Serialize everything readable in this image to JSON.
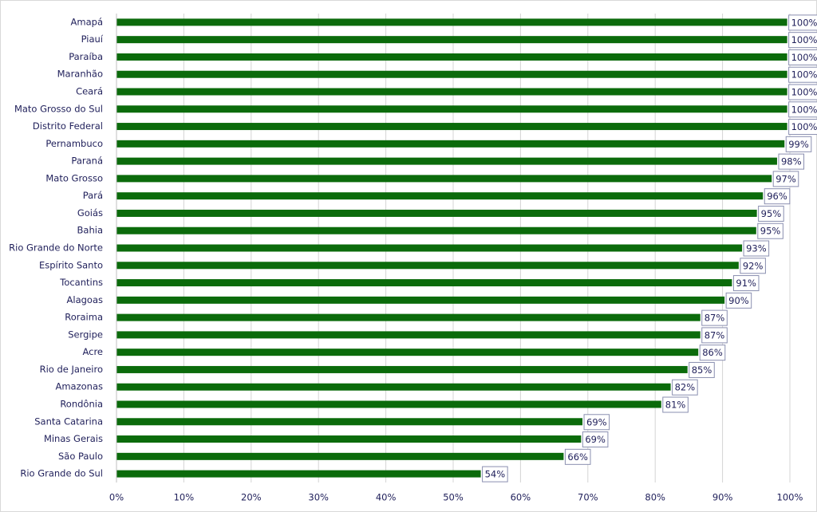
{
  "chart_data": {
    "type": "bar",
    "orientation": "horizontal",
    "categories": [
      "Amapá",
      "Piauí",
      "Paraíba",
      "Maranhão",
      "Ceará",
      "Mato Grosso do Sul",
      "Distrito Federal",
      "Pernambuco",
      "Paraná",
      "Mato Grosso",
      "Pará",
      "Goiás",
      "Bahia",
      "Rio Grande do Norte",
      "Espírito Santo",
      "Tocantins",
      "Alagoas",
      "Roraima",
      "Sergipe",
      "Acre",
      "Rio de Janeiro",
      "Amazonas",
      "Rondônia",
      "Santa Catarina",
      "Minas Gerais",
      "São Paulo",
      "Rio Grande do Sul"
    ],
    "values": [
      99.6,
      99.6,
      99.6,
      99.6,
      99.6,
      99.6,
      99.6,
      99.2,
      98.1,
      97.3,
      96.0,
      95.1,
      95.0,
      92.9,
      92.4,
      91.4,
      90.3,
      86.7,
      86.7,
      86.4,
      84.8,
      82.3,
      80.9,
      69.2,
      69.0,
      66.4,
      54.1
    ],
    "value_labels": [
      "100%",
      "100%",
      "100%",
      "100%",
      "100%",
      "100%",
      "100%",
      "99%",
      "98%",
      "97%",
      "96%",
      "95%",
      "95%",
      "93%",
      "92%",
      "91%",
      "90%",
      "87%",
      "87%",
      "86%",
      "85%",
      "82%",
      "81%",
      "69%",
      "69%",
      "66%",
      "54%"
    ],
    "color": "#0b6b0b",
    "xlim": [
      0,
      100
    ],
    "xticks": [
      {
        "value": 0,
        "label": "0%"
      },
      {
        "value": 10,
        "label": "10%"
      },
      {
        "value": 20,
        "label": "20%"
      },
      {
        "value": 30,
        "label": "30%"
      },
      {
        "value": 40,
        "label": "40%"
      },
      {
        "value": 50,
        "label": "50%"
      },
      {
        "value": 60,
        "label": "60%"
      },
      {
        "value": 70,
        "label": "70%"
      },
      {
        "value": 80,
        "label": "80%"
      },
      {
        "value": 90,
        "label": "90%"
      },
      {
        "value": 100,
        "label": "100%"
      }
    ],
    "grid": true
  }
}
